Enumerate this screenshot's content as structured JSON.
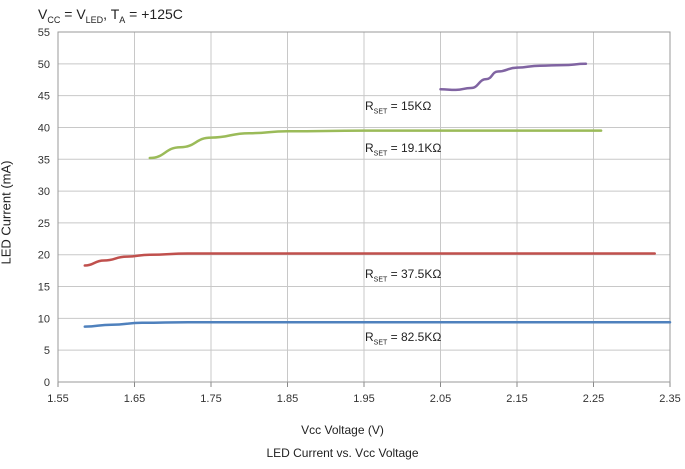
{
  "chart_data": {
    "type": "line",
    "caption": "LED Current vs. Vcc Voltage",
    "conditions": {
      "v1": "V",
      "v1_sub": "CC",
      "eq": "= ",
      "v2": "V",
      "v2_sub": "LED",
      "sep": ", ",
      "t": "T",
      "t_sub": "A",
      "temp": " = +125C"
    },
    "xlabel": "Vcc Voltage (V)",
    "ylabel": "LED Current (mA)",
    "xlim": [
      1.55,
      2.35
    ],
    "ylim": [
      0,
      55
    ],
    "x_ticks": [
      "1.55",
      "1.65",
      "1.75",
      "1.85",
      "1.95",
      "2.05",
      "2.15",
      "2.25",
      "2.35"
    ],
    "y_ticks": [
      "0",
      "5",
      "10",
      "15",
      "20",
      "25",
      "30",
      "35",
      "40",
      "45",
      "50",
      "55"
    ],
    "grid": true,
    "series": [
      {
        "name": "R_SET = 15KΩ",
        "label_main": "R",
        "label_sub": "SET",
        "label_val": " = 15KΩ",
        "color": "#8064a2",
        "points": [
          [
            2.05,
            46.0
          ],
          [
            2.07,
            45.9
          ],
          [
            2.09,
            46.2
          ],
          [
            2.11,
            47.6
          ],
          [
            2.125,
            48.8
          ],
          [
            2.15,
            49.4
          ],
          [
            2.18,
            49.7
          ],
          [
            2.21,
            49.8
          ],
          [
            2.24,
            50.0
          ]
        ]
      },
      {
        "name": "R_SET = 19.1KΩ",
        "label_main": "R",
        "label_sub": "SET",
        "label_val": " = 19.1KΩ",
        "color": "#9bbb59",
        "points": [
          [
            1.67,
            35.2
          ],
          [
            1.71,
            36.9
          ],
          [
            1.75,
            38.4
          ],
          [
            1.8,
            39.1
          ],
          [
            1.85,
            39.4
          ],
          [
            1.95,
            39.5
          ],
          [
            2.05,
            39.5
          ],
          [
            2.15,
            39.5
          ],
          [
            2.26,
            39.5
          ]
        ]
      },
      {
        "name": "R_SET = 37.5KΩ",
        "label_main": "R",
        "label_sub": "SET",
        "label_val": " = 37.5KΩ",
        "color": "#c0504d",
        "points": [
          [
            1.585,
            18.3
          ],
          [
            1.61,
            19.1
          ],
          [
            1.64,
            19.7
          ],
          [
            1.67,
            20.0
          ],
          [
            1.72,
            20.2
          ],
          [
            1.8,
            20.2
          ],
          [
            1.95,
            20.2
          ],
          [
            2.1,
            20.2
          ],
          [
            2.25,
            20.2
          ],
          [
            2.33,
            20.2
          ]
        ]
      },
      {
        "name": "R_SET = 82.5KΩ",
        "label_main": "R",
        "label_sub": "SET",
        "label_val": " = 82.5KΩ",
        "color": "#4f81bd",
        "points": [
          [
            1.585,
            8.7
          ],
          [
            1.62,
            9.0
          ],
          [
            1.66,
            9.3
          ],
          [
            1.72,
            9.4
          ],
          [
            1.85,
            9.4
          ],
          [
            2.05,
            9.4
          ],
          [
            2.2,
            9.4
          ],
          [
            2.35,
            9.4
          ]
        ]
      }
    ]
  }
}
